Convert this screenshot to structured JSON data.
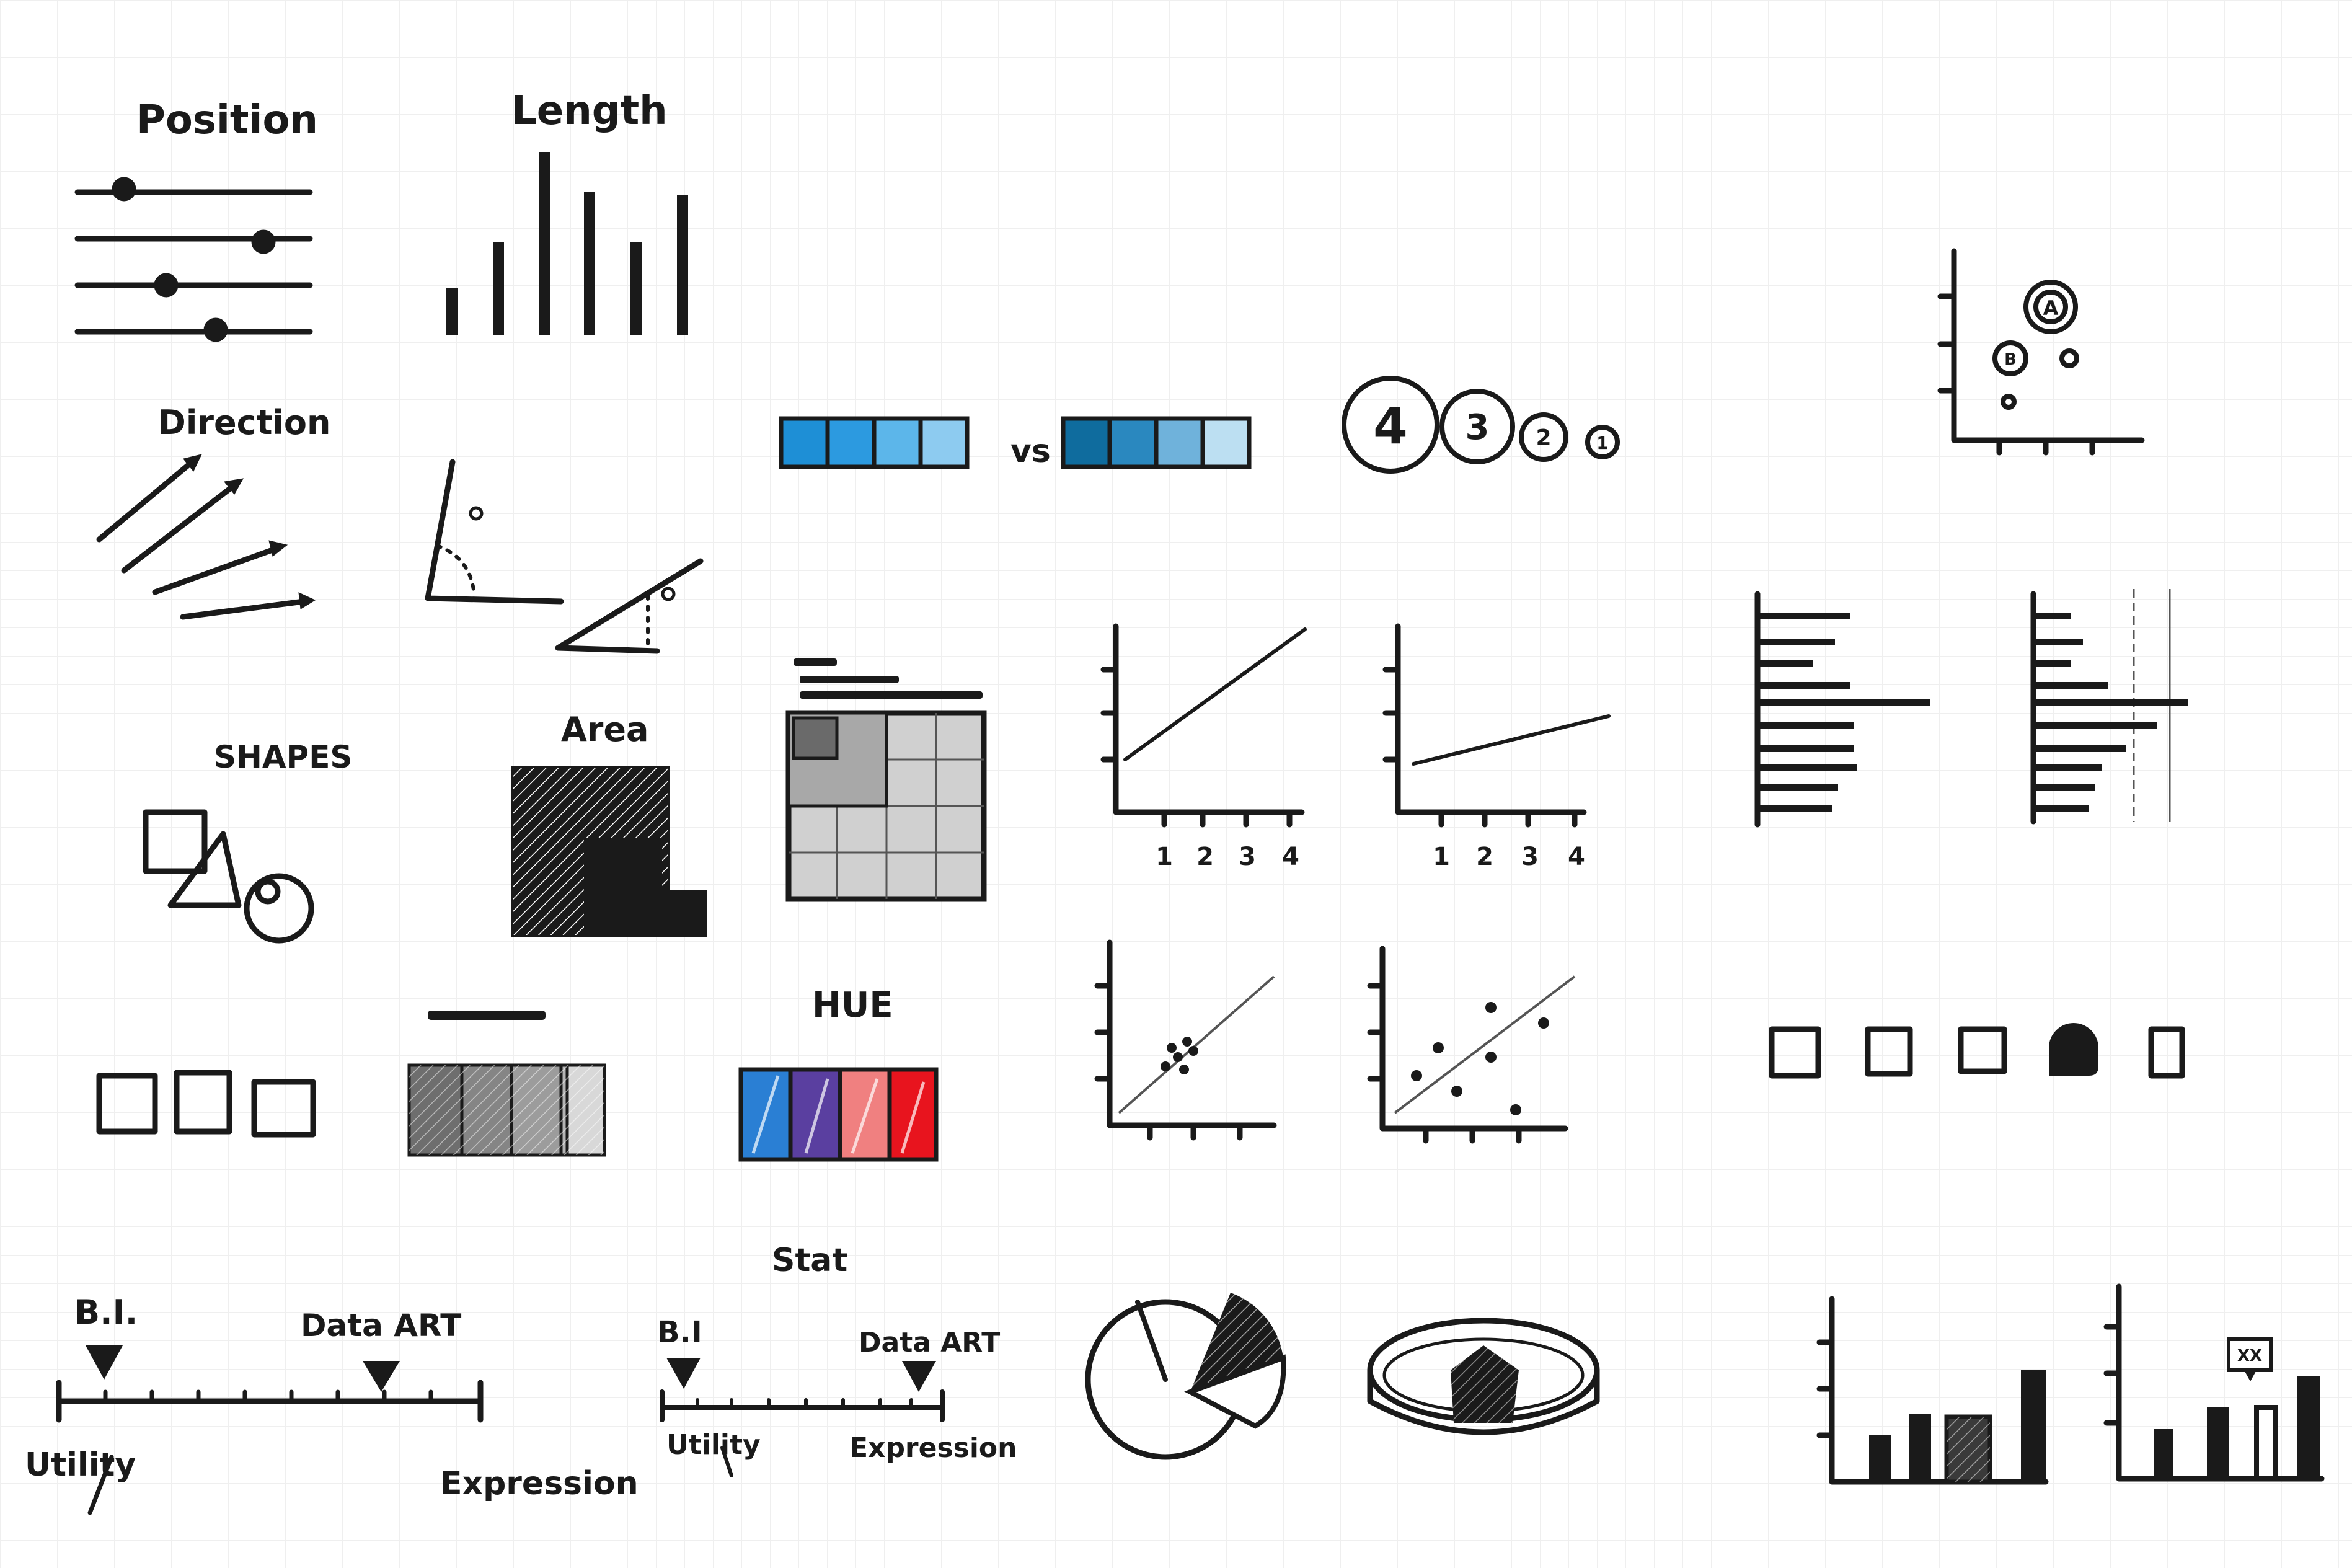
{
  "labels": {
    "position": "Position",
    "length": "Length",
    "direction": "Direction",
    "shapes": "SHAPES",
    "area": "Area",
    "hue": "HUE",
    "stat": "Stat",
    "vs": "vs",
    "bi_1": "B.I.",
    "data_art_1": "Data ART",
    "utility_1": "Utility",
    "expression_1": "Expression",
    "bi_2": "B.I",
    "data_art_2": "Data ART",
    "utility_2": "Utility",
    "expression_2": "Expression",
    "bubble_a": "A",
    "bubble_b": "B",
    "circle_4": "4",
    "circle_3": "3",
    "circle_2": "2",
    "circle_1": "1",
    "callout": "XX"
  },
  "ticks": {
    "chart_a": [
      "1",
      "2",
      "3",
      "4"
    ],
    "chart_b": [
      "1",
      "2",
      "3",
      "4"
    ]
  },
  "colors": {
    "ink": "#1a1a1a",
    "blue_strong": "#1e8fd6",
    "blue_light": "#bcdff2",
    "dark_blue": "#0f6c9e",
    "purple": "#5a3fa0",
    "salmon": "#f08080",
    "red": "#e8141e",
    "hue_blue": "#2a7fd4",
    "gray_light": "#cfcfcf",
    "gray_mid": "#9a9a9a",
    "gray_dark": "#555555",
    "grid": "#eeeeee"
  }
}
